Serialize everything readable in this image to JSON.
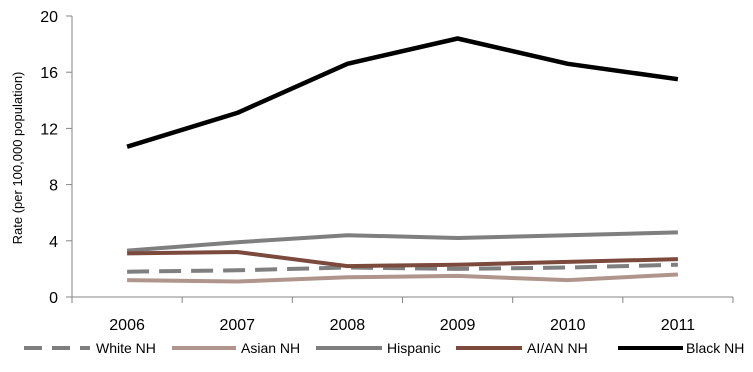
{
  "chart_data": {
    "type": "line",
    "title": "",
    "xlabel": "",
    "ylabel": "Rate (per 100,000 population)",
    "x": [
      "2006",
      "2007",
      "2008",
      "2009",
      "2010",
      "2011"
    ],
    "ylim": [
      0,
      20
    ],
    "yticks": [
      "0",
      "4",
      "8",
      "12",
      "16",
      "20"
    ],
    "grid": false,
    "legend_position": "bottom",
    "series": [
      {
        "name": "White NH",
        "values": [
          1.8,
          1.9,
          2.1,
          2.0,
          2.1,
          2.3
        ],
        "color": "#7f7f7f",
        "dash": true
      },
      {
        "name": "Asian NH",
        "values": [
          1.2,
          1.1,
          1.4,
          1.5,
          1.2,
          1.6
        ],
        "color": "#b0958c",
        "dash": false
      },
      {
        "name": "Hispanic",
        "values": [
          3.3,
          3.9,
          4.4,
          4.2,
          4.4,
          4.6
        ],
        "color": "#7f7f7f",
        "dash": false
      },
      {
        "name": "AI/AN NH",
        "values": [
          3.1,
          3.2,
          2.2,
          2.3,
          2.5,
          2.7
        ],
        "color": "#7b4a3c",
        "dash": false
      },
      {
        "name": "Black NH",
        "values": [
          10.7,
          13.1,
          16.6,
          18.4,
          16.6,
          15.5
        ],
        "color": "#000000",
        "dash": false
      }
    ]
  }
}
